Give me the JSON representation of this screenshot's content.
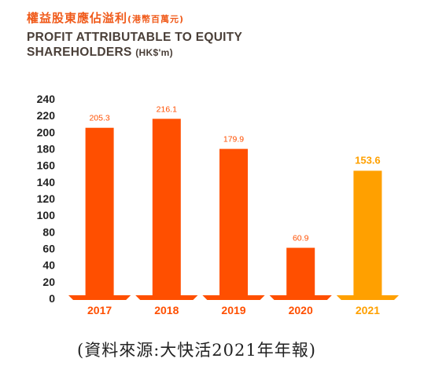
{
  "header": {
    "title_zh": "權益股東應佔溢利",
    "unit_zh": "(港幣百萬元)",
    "title_en": "PROFIT ATTRIBUTABLE TO EQUITY SHAREHOLDERS",
    "unit_en": "(HK$'m)"
  },
  "caption": "(資料來源:大快活2021年年報)",
  "colors": {
    "bar": "#ff4f00",
    "highlight": "#ffa000",
    "axis_text": "#222222",
    "title_orange": "#f05a1a"
  },
  "chart_data": {
    "type": "bar",
    "categories": [
      "2017",
      "2018",
      "2019",
      "2020",
      "2021"
    ],
    "values": [
      205.3,
      216.1,
      179.9,
      60.9,
      153.6
    ],
    "data_labels": [
      "205.3",
      "216.1",
      "179.9",
      "60.9",
      "153.6"
    ],
    "highlight_category": "2021",
    "ylim": [
      0,
      240
    ],
    "yticks": [
      0,
      20,
      40,
      60,
      80,
      100,
      120,
      140,
      160,
      180,
      200,
      220,
      240
    ],
    "grid": false,
    "legend": "none"
  }
}
